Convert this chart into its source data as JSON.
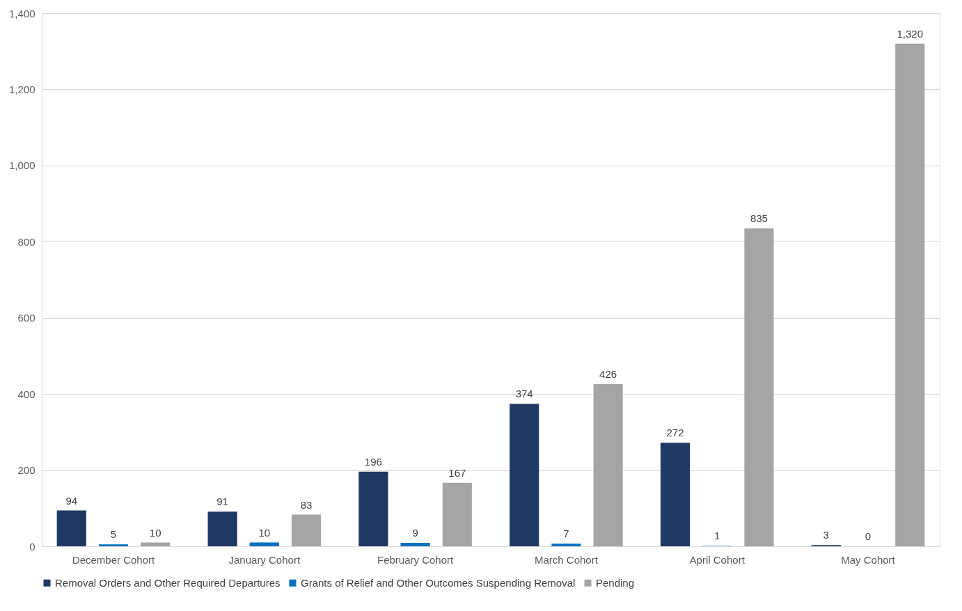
{
  "chart_data": {
    "type": "bar",
    "categories": [
      "December Cohort",
      "January Cohort",
      "February Cohort",
      "March Cohort",
      "April   Cohort",
      "May   Cohort"
    ],
    "series": [
      {
        "name": "Removal Orders and Other Required Departures",
        "color": "#1f3864",
        "values": [
          94,
          91,
          196,
          374,
          272,
          3
        ],
        "value_labels": [
          "94",
          "91",
          "196",
          "374",
          "272",
          "3"
        ]
      },
      {
        "name": "Grants of Relief and Other Outcomes Suspending Removal",
        "color": "#0070c0",
        "values": [
          5,
          10,
          9,
          7,
          1,
          0
        ],
        "value_labels": [
          "5",
          "10",
          "9",
          "7",
          "1",
          "0"
        ]
      },
      {
        "name": "Pending",
        "color": "#a5a5a5",
        "values": [
          10,
          83,
          167,
          426,
          835,
          1320
        ],
        "value_labels": [
          "10",
          "83",
          "167",
          "426",
          "835",
          "1,320"
        ]
      }
    ],
    "ylim": [
      0,
      1400
    ],
    "yticks": [
      0,
      200,
      400,
      600,
      800,
      {
        "value": 1000,
        "label": "1,000"
      },
      {
        "value": 1200,
        "label": "1,200"
      },
      {
        "value": 1400,
        "label": "1,400"
      }
    ],
    "grid": "y",
    "legend": "bottom"
  }
}
